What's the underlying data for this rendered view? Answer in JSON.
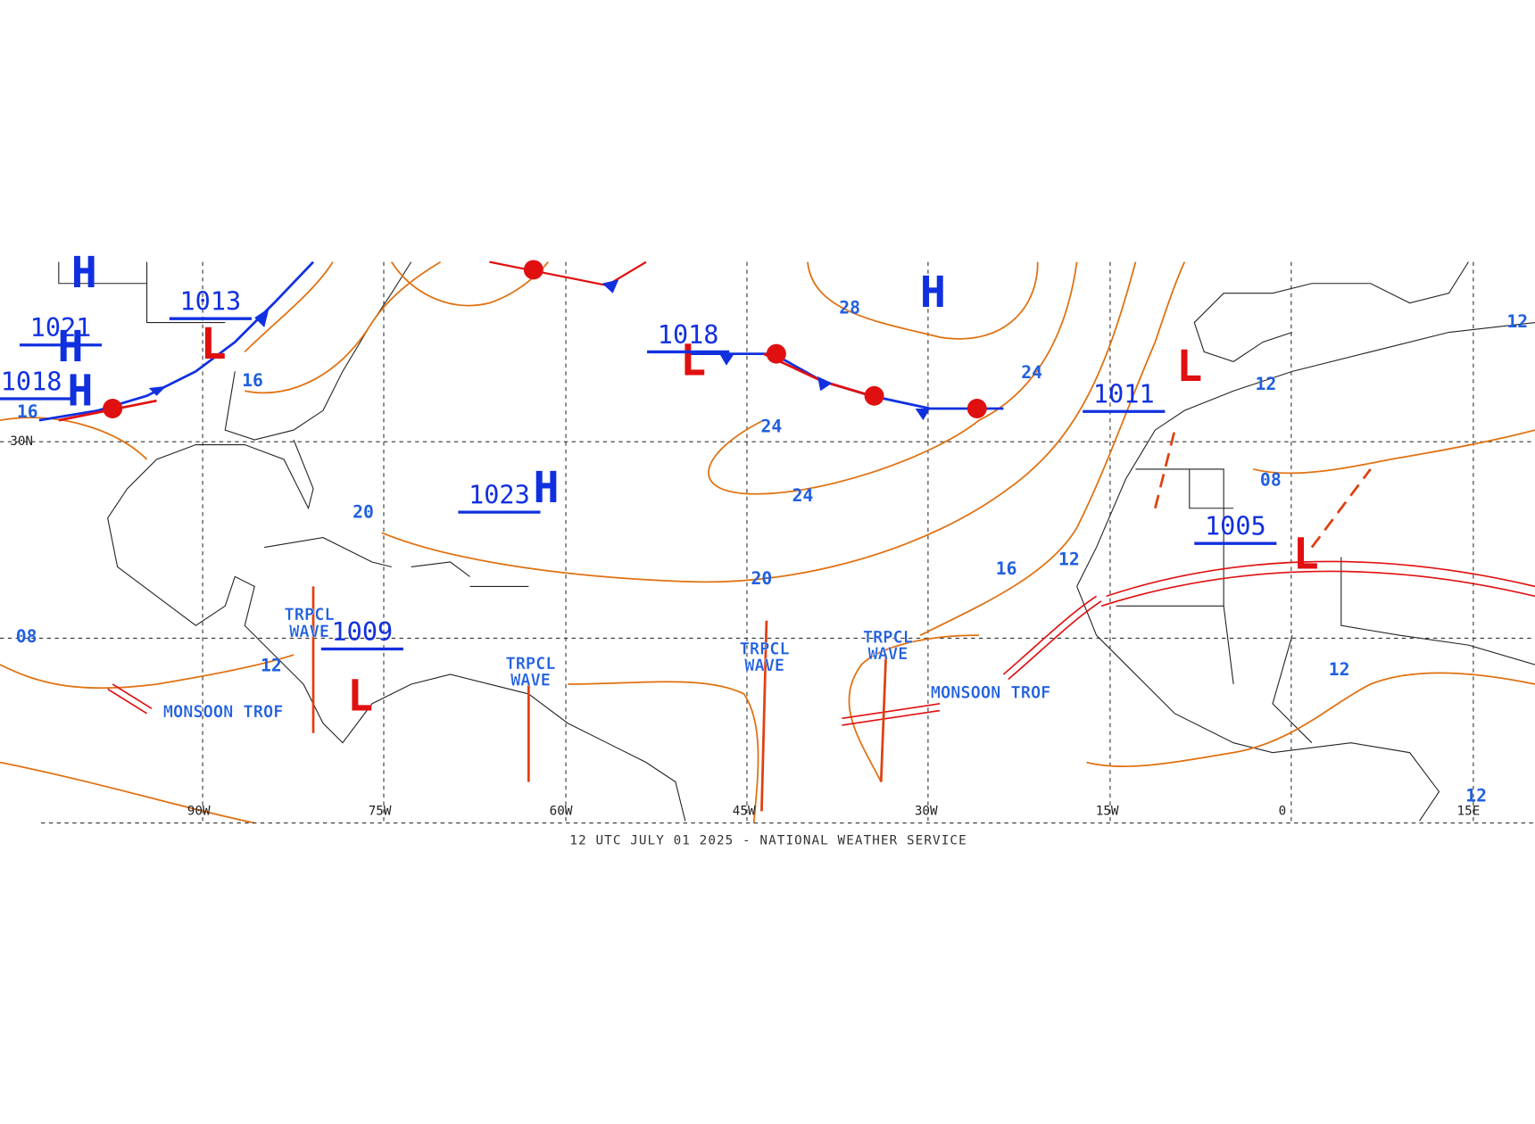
{
  "map": {
    "footer": "12 UTC JULY 01 2025 - NATIONAL WEATHER SERVICE",
    "longitude_labels": [
      "90W",
      "75W",
      "60W",
      "45W",
      "30W",
      "15W",
      "0",
      "15E"
    ],
    "latitude_label": "30N",
    "pressure_centers": [
      {
        "symbol": "H",
        "pressure": "1021"
      },
      {
        "symbol": "H",
        "pressure": "1018"
      },
      {
        "symbol": "L",
        "pressure": "1013"
      },
      {
        "symbol": "L",
        "pressure": "1018"
      },
      {
        "symbol": "H",
        "pressure": "1023"
      },
      {
        "symbol": "L",
        "pressure": "1009"
      },
      {
        "symbol": "L",
        "pressure": "1011"
      },
      {
        "symbol": "L",
        "pressure": "1005"
      }
    ],
    "extra_high": "H",
    "isobar_labels": [
      "28",
      "24",
      "24",
      "24",
      "20",
      "20",
      "16",
      "16",
      "16",
      "12",
      "12",
      "12",
      "12",
      "12",
      "12",
      "08",
      "08"
    ],
    "features": [
      "TRPCL WAVE",
      "TRPCL WAVE",
      "TRPCL WAVE",
      "TRPCL WAVE",
      "MONSOON TROF",
      "MONSOON TROF"
    ]
  }
}
